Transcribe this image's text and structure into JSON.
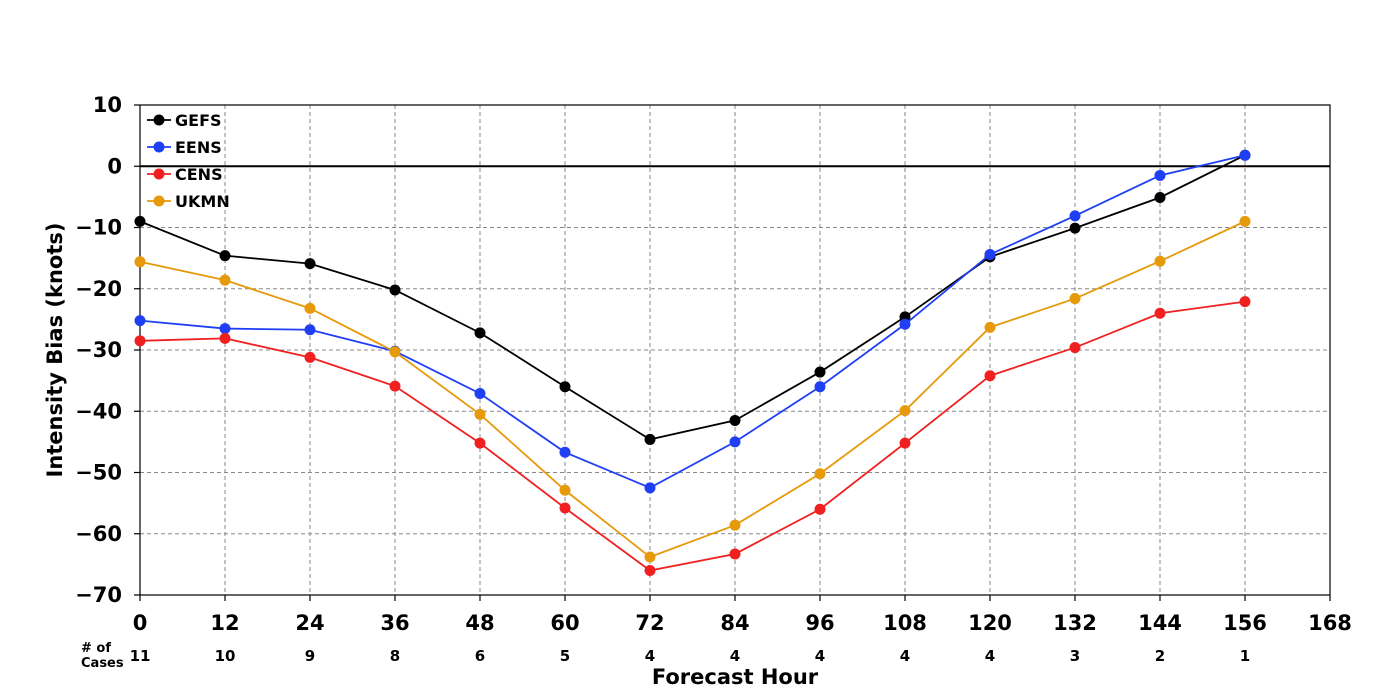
{
  "chart_data": {
    "type": "line",
    "xlabel": "Forecast Hour",
    "ylabel": "Intensity Bias (knots)",
    "xlim": [
      0,
      168
    ],
    "ylim": [
      -70,
      10
    ],
    "x_ticks": [
      "0",
      "12",
      "24",
      "36",
      "48",
      "60",
      "72",
      "84",
      "96",
      "108",
      "120",
      "132",
      "144",
      "156",
      "168"
    ],
    "y_ticks": [
      "10",
      "0",
      "−10",
      "−20",
      "−30",
      "−40",
      "−50",
      "−60",
      "−70"
    ],
    "grid": true,
    "zero_line": true,
    "legend_position": "top-left",
    "cases_label": "# of Cases",
    "cases_label_lines": [
      "# of",
      "Cases"
    ],
    "cases": [
      "11",
      "10",
      "9",
      "8",
      "6",
      "5",
      "4",
      "4",
      "4",
      "4",
      "4",
      "3",
      "2",
      "1"
    ],
    "x": [
      0,
      12,
      24,
      36,
      48,
      60,
      72,
      84,
      96,
      108,
      120,
      132,
      144,
      156
    ],
    "series": [
      {
        "name": "GEFS",
        "color": "#000000",
        "values": [
          -9.0,
          -14.6,
          -15.9,
          -20.2,
          -27.2,
          -36.0,
          -44.6,
          -41.5,
          -33.6,
          -24.6,
          -14.8,
          -10.1,
          -5.1,
          1.8
        ]
      },
      {
        "name": "EENS",
        "color": "#1f3ff5",
        "values": [
          -25.2,
          -26.5,
          -26.7,
          -30.2,
          -37.1,
          -46.7,
          -52.5,
          -45.0,
          -36.0,
          -25.8,
          -14.4,
          -8.1,
          -1.5,
          1.8
        ]
      },
      {
        "name": "CENS",
        "color": "#f02020",
        "values": [
          -28.5,
          -28.1,
          -31.2,
          -35.9,
          -45.2,
          -55.8,
          -66.0,
          -63.3,
          -56.0,
          -45.2,
          -34.2,
          -29.6,
          -24.0,
          -22.1
        ]
      },
      {
        "name": "UKMN",
        "color": "#e69a0a",
        "values": [
          -15.6,
          -18.6,
          -23.2,
          -30.3,
          -40.5,
          -52.9,
          -63.8,
          -58.6,
          -50.2,
          -39.9,
          -26.3,
          -21.6,
          -15.5,
          -9.0
        ]
      }
    ]
  }
}
